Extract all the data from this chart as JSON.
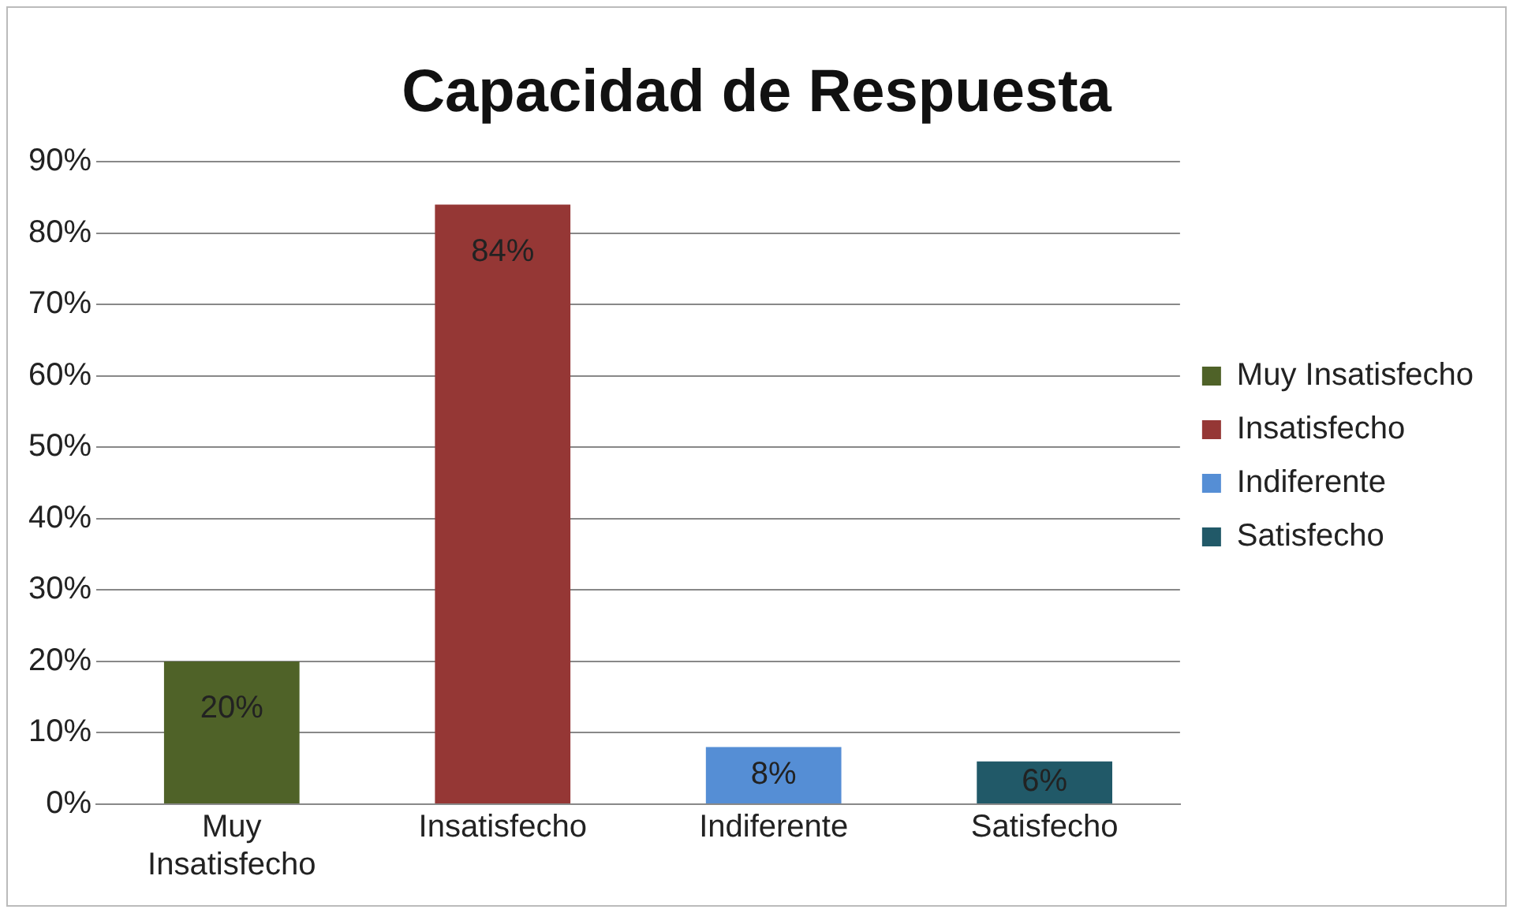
{
  "chart_data": {
    "type": "bar",
    "title": "Capacidad de Respuesta",
    "categories": [
      "Muy Insatisfecho",
      "Insatisfecho",
      "Indiferente",
      "Satisfecho"
    ],
    "series": [
      {
        "name": "Muy Insatisfecho",
        "color": "#4f6228",
        "values": [
          20,
          null,
          null,
          null
        ],
        "value_labels": [
          "20%",
          null,
          null,
          null
        ]
      },
      {
        "name": "Insatisfecho",
        "color": "#953735",
        "values": [
          null,
          84,
          null,
          null
        ],
        "value_labels": [
          null,
          "84%",
          null,
          null
        ]
      },
      {
        "name": "Indiferente",
        "color": "#558ed5",
        "values": [
          null,
          null,
          8,
          null
        ],
        "value_labels": [
          null,
          null,
          "8%",
          null
        ]
      },
      {
        "name": "Satisfecho",
        "color": "#215968",
        "values": [
          null,
          null,
          null,
          6
        ],
        "value_labels": [
          null,
          null,
          null,
          "6%"
        ]
      }
    ],
    "ylim": [
      0,
      90
    ],
    "yticks": [
      {
        "value": 0,
        "label": "0%"
      },
      {
        "value": 10,
        "label": "10%"
      },
      {
        "value": 20,
        "label": "20%"
      },
      {
        "value": 30,
        "label": "30%"
      },
      {
        "value": 40,
        "label": "40%"
      },
      {
        "value": 50,
        "label": "50%"
      },
      {
        "value": 60,
        "label": "60%"
      },
      {
        "value": 70,
        "label": "70%"
      },
      {
        "value": 80,
        "label": "80%"
      },
      {
        "value": 90,
        "label": "90%"
      }
    ],
    "grid": "y",
    "legend": "right"
  }
}
